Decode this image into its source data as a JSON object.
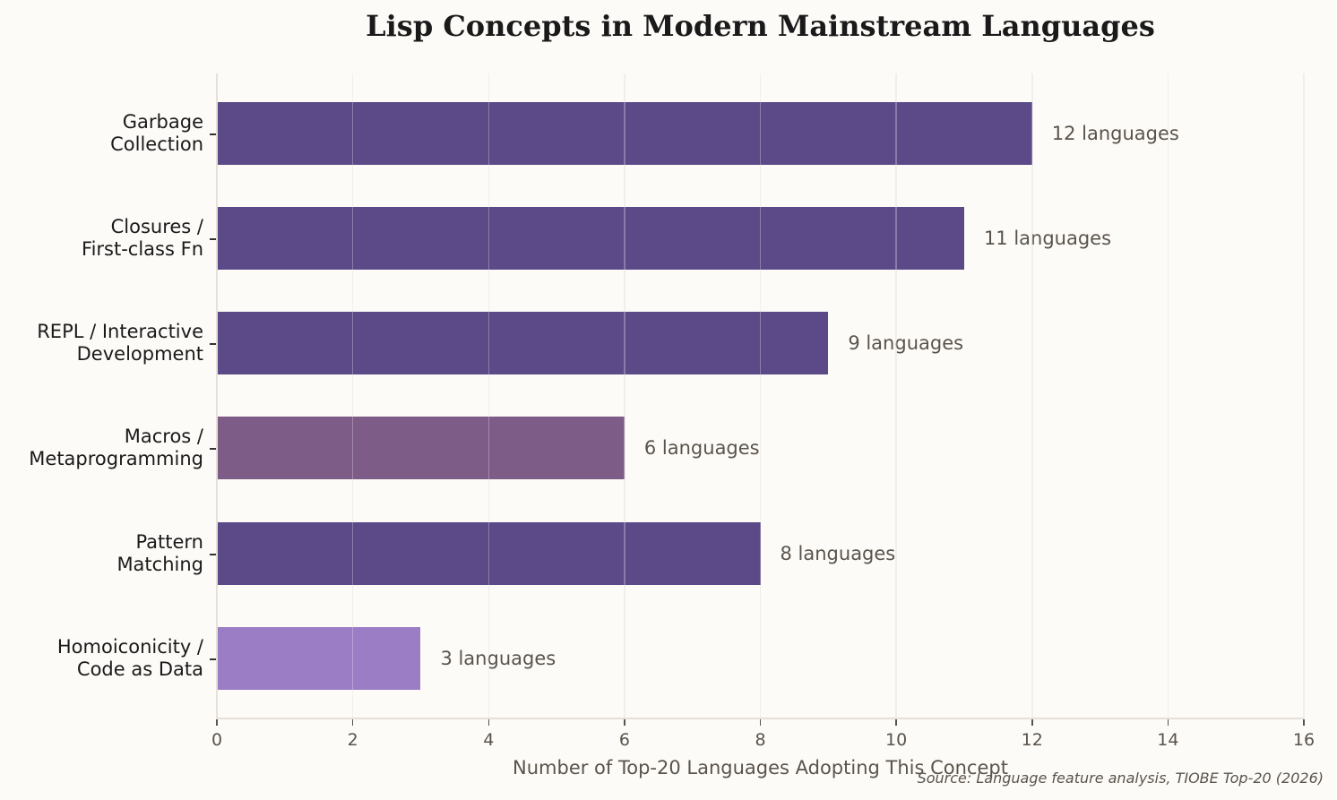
{
  "chart_data": {
    "type": "bar",
    "orientation": "horizontal",
    "title": "Lisp Concepts in Modern Mainstream Languages",
    "xlabel": "Number of Top-20 Languages Adopting This Concept",
    "ylabel": "",
    "xlim": [
      0,
      16
    ],
    "xticks": [
      0,
      2,
      4,
      6,
      8,
      10,
      12,
      14,
      16
    ],
    "grid": "vertical",
    "categories": [
      "Garbage Collection",
      "Closures / First-class Fn",
      "REPL / Interactive Development",
      "Macros / Metaprogramming",
      "Pattern Matching",
      "Homoiconicity / Code as Data"
    ],
    "values": [
      12,
      11,
      9,
      6,
      8,
      3
    ],
    "data_labels": [
      "12 languages",
      "11 languages",
      "9 languages",
      "6 languages",
      "8 languages",
      "3 languages"
    ],
    "colors": [
      "#5b4a87",
      "#5b4a87",
      "#5b4a87",
      "#7d5c88",
      "#5b4a87",
      "#9a7dc5"
    ],
    "annotation": "Source: Language feature analysis, TIOBE Top-20 (2026)"
  },
  "title": "Lisp Concepts in Modern Mainstream Languages",
  "xlabel": "Number of Top-20 Languages Adopting This Concept",
  "source": "Source: Language feature analysis, TIOBE Top-20 (2026)",
  "xticks": [
    "0",
    "2",
    "4",
    "6",
    "8",
    "10",
    "12",
    "14",
    "16"
  ],
  "rows": [
    {
      "line1": "Garbage",
      "line2": "Collection",
      "value": 12,
      "label": "12 languages",
      "color": "#5b4a87"
    },
    {
      "line1": "Closures /",
      "line2": "First-class Fn",
      "value": 11,
      "label": "11 languages",
      "color": "#5b4a87"
    },
    {
      "line1": "REPL / Interactive",
      "line2": "Development",
      "value": 9,
      "label": "9 languages",
      "color": "#5b4a87"
    },
    {
      "line1": "Macros /",
      "line2": "Metaprogramming",
      "value": 6,
      "label": "6 languages",
      "color": "#7d5c88"
    },
    {
      "line1": "Pattern",
      "line2": "Matching",
      "value": 8,
      "label": "8 languages",
      "color": "#5b4a87"
    },
    {
      "line1": "Homoiconicity /",
      "line2": "Code as Data",
      "value": 3,
      "label": "3 languages",
      "color": "#9a7dc5"
    }
  ]
}
